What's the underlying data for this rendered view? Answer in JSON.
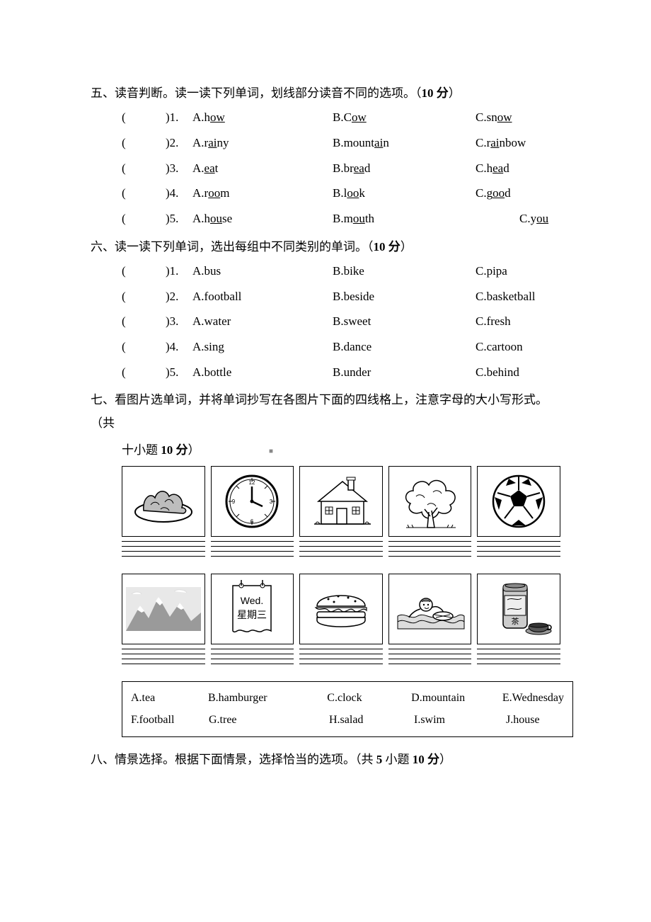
{
  "section5": {
    "heading_prefix": "五、读音判断。读一读下列单词，划线部分读音不同的选项。（",
    "heading_points": "10 分",
    "heading_suffix": "）",
    "rows": [
      {
        "n": "1",
        "a_pre": "A.h",
        "a_u": "ow",
        "b_pre": "B.C",
        "b_u": "ow",
        "c_pre": "C.sn",
        "c_u": "ow"
      },
      {
        "n": "2",
        "a_pre": "A.r",
        "a_u": "ai",
        "a_post": "ny",
        "b_pre": "B.mount",
        "b_u": "ai",
        "b_post": "n",
        "c_pre": "C.r",
        "c_u": "ai",
        "c_post": "nbow"
      },
      {
        "n": "3",
        "a_pre": "A.",
        "a_u": "ea",
        "a_post": "t",
        "b_pre": "B.br",
        "b_u": "ea",
        "b_post": "d",
        "c_pre": "C.h",
        "c_u": "ea",
        "c_post": "d"
      },
      {
        "n": "4",
        "a_pre": "A.r",
        "a_u": "oo",
        "a_post": "m",
        "b_pre": "B.l",
        "b_u": "oo",
        "b_post": "k",
        "c_pre": "C.g",
        "c_u": "oo",
        "c_post": "d"
      },
      {
        "n": "5",
        "a_pre": "A.h",
        "a_u": "ou",
        "a_post": "se",
        "b_pre": "B.m",
        "b_u": "ou",
        "b_post": "th",
        "c_pre": "C.y",
        "c_u": "ou",
        "c_extra": true
      }
    ]
  },
  "section6": {
    "heading_prefix": "六、读一读下列单词，选出每组中不同类别的单词。（",
    "heading_points": "10 分",
    "heading_suffix": "）",
    "rows": [
      {
        "n": "1",
        "a": "A.bus",
        "b": "B.bike",
        "c": "C.pipa"
      },
      {
        "n": "2",
        "a": "A.football",
        "b": "B.beside",
        "c": "C.basketball"
      },
      {
        "n": "3",
        "a": "A.water",
        "b": "B.sweet",
        "c": "C.fresh"
      },
      {
        "n": "4",
        "a": "A.sing",
        "b": "B.dance",
        "c": "C.cartoon"
      },
      {
        "n": "5",
        "a": "A.bottle",
        "b": "B.under",
        "c": "C.behind"
      }
    ]
  },
  "section7": {
    "heading_line1": "七、看图片选单词，并将单词抄写在各图片下面的四线格上，注意字母的大小写形式。（共",
    "heading_line2_prefix": "十小题 ",
    "heading_line2_points": "10 分",
    "heading_line2_suffix": "）",
    "calendar_en": "Wed.",
    "calendar_cn": "星期三",
    "tea_char": "茶",
    "bank": {
      "a": "A.tea",
      "b": "B.hamburger",
      "c": "C.clock",
      "d": "D.mountain",
      "e": "E.Wednesday",
      "f": "F.football",
      "g": "G.tree",
      "h": "H.salad",
      "i": "I.swim",
      "j": "J.house"
    }
  },
  "section8": {
    "heading_prefix": "八、情景选择。根据下面情景，选择恰当的选项。（共 ",
    "heading_points": "5 ",
    "heading_mid": "小题 ",
    "heading_points2": "10 分",
    "heading_suffix": "）"
  },
  "ruling": {
    "line_count": 4,
    "line_color": "#000000"
  },
  "colors": {
    "text": "#000000",
    "bg": "#ffffff",
    "border": "#000000"
  }
}
